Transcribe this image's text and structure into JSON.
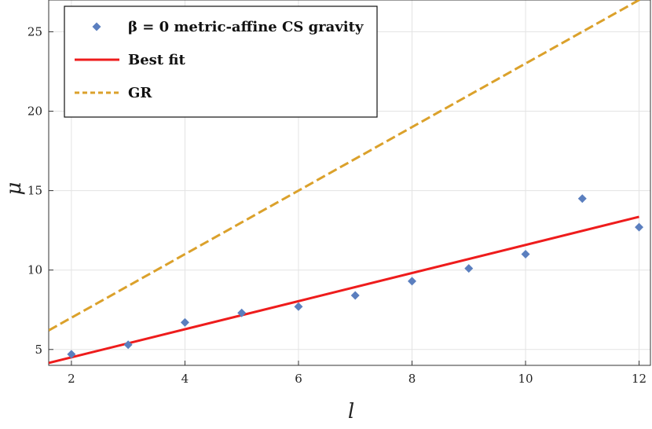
{
  "chart_data": {
    "type": "scatter",
    "xlabel": "l",
    "ylabel": "μ",
    "xlim": [
      1.6,
      12.2
    ],
    "ylim": [
      4,
      27
    ],
    "xticks": [
      2,
      4,
      6,
      8,
      10,
      12
    ],
    "yticks": [
      5,
      10,
      15,
      20,
      25
    ],
    "grid": true,
    "legend_position": "top-left",
    "series": [
      {
        "name": "β = 0 metric-affine CS gravity",
        "kind": "scatter",
        "marker": "diamond",
        "color": "#5b7fbf",
        "x": [
          2,
          3,
          4,
          5,
          6,
          7,
          8,
          9,
          10,
          11,
          12
        ],
        "y": [
          4.7,
          5.3,
          6.7,
          7.3,
          7.7,
          8.4,
          9.3,
          10.1,
          11.0,
          14.5,
          12.7
        ]
      },
      {
        "name": "Best fit",
        "kind": "line",
        "style": "solid",
        "color": "#ee1c1c",
        "x": [
          1.6,
          12
        ],
        "y": [
          4.15,
          13.35
        ]
      },
      {
        "name": "GR",
        "kind": "line",
        "style": "dashed",
        "color": "#dba12b",
        "x": [
          1.6,
          12.2
        ],
        "y": [
          6.2,
          27.4
        ]
      }
    ]
  }
}
